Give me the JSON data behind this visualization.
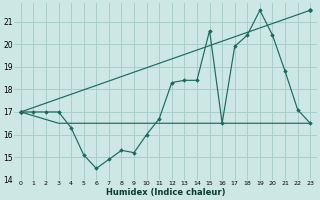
{
  "xlabel": "Humidex (Indice chaleur)",
  "bg_color": "#cde8e4",
  "grid_color": "#a8cfc8",
  "line_color": "#1a6b5a",
  "xlim": [
    -0.5,
    23.5
  ],
  "ylim": [
    14.0,
    21.8
  ],
  "yticks": [
    14,
    15,
    16,
    17,
    18,
    19,
    20,
    21
  ],
  "xticks": [
    0,
    1,
    2,
    3,
    4,
    5,
    6,
    7,
    8,
    9,
    10,
    11,
    12,
    13,
    14,
    15,
    16,
    17,
    18,
    19,
    20,
    21,
    22,
    23
  ],
  "line1_x": [
    0,
    1,
    2,
    3,
    4,
    5,
    6,
    7,
    8,
    9,
    10,
    11,
    12,
    13,
    14,
    15,
    16,
    17,
    18,
    19,
    20,
    21,
    22,
    23
  ],
  "line1_y": [
    17.0,
    17.0,
    17.0,
    17.0,
    16.3,
    15.1,
    14.5,
    14.9,
    15.3,
    15.2,
    16.0,
    16.7,
    18.3,
    18.4,
    18.4,
    20.6,
    16.5,
    19.9,
    20.4,
    21.5,
    20.4,
    18.8,
    17.1,
    16.5
  ],
  "line2_x": [
    0,
    23
  ],
  "line2_y": [
    17.0,
    21.5
  ],
  "line3_x": [
    0,
    3,
    10,
    22,
    23
  ],
  "line3_y": [
    17.0,
    16.5,
    16.5,
    16.5,
    16.5
  ]
}
